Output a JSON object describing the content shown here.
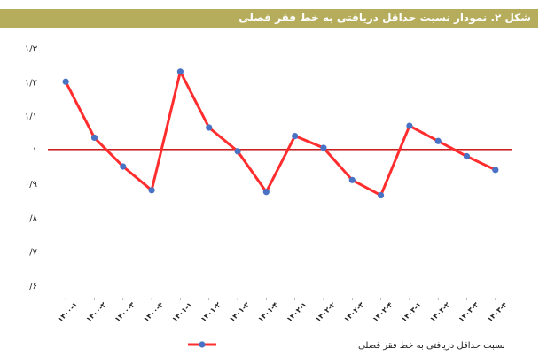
{
  "chart_data": {
    "type": "line",
    "title": "شکل ۲. نمودار نسبت حداقل دریافتی به خط فقر فصلی",
    "xlabel": "",
    "ylabel": "",
    "categories": [
      "۱۴۰۰-۱",
      "۱۴۰۰-۲",
      "۱۴۰۰-۳",
      "۱۴۰۰-۴",
      "۱۴۰۱-۱",
      "۱۴۰۱-۲",
      "۱۴۰۱-۳",
      "۱۴۰۱-۴",
      "۱۴۰۲-۱",
      "۱۴۰۲-۲",
      "۱۴۰۲-۳",
      "۱۴۰۲-۴",
      "۱۴۰۳-۱",
      "۱۴۰۳-۲",
      "۱۴۰۳-۳",
      "۱۴۰۳-۴"
    ],
    "series": [
      {
        "name": "نسبت حداقل دریافتی به خط فقر فصلی",
        "color": "#ff2d2d",
        "marker_color": "#4a72c4",
        "values": [
          1.2,
          1.035,
          0.95,
          0.88,
          1.23,
          1.065,
          0.995,
          0.875,
          1.04,
          1.005,
          0.91,
          0.865,
          1.07,
          1.025,
          0.98,
          0.94
        ]
      }
    ],
    "reference_line": {
      "value": 1,
      "color": "#c00000"
    },
    "yticks": [
      0.6,
      0.7,
      0.8,
      0.9,
      1,
      1.1,
      1.2,
      1.3
    ],
    "ytick_labels": [
      "۰/۶",
      "۰/۷",
      "۰/۸",
      "۰/۹",
      "۱",
      "۱/۱",
      "۱/۲",
      "۱/۳"
    ],
    "ylim": [
      0.6,
      1.3
    ],
    "grid": false,
    "legend_position": "bottom"
  }
}
